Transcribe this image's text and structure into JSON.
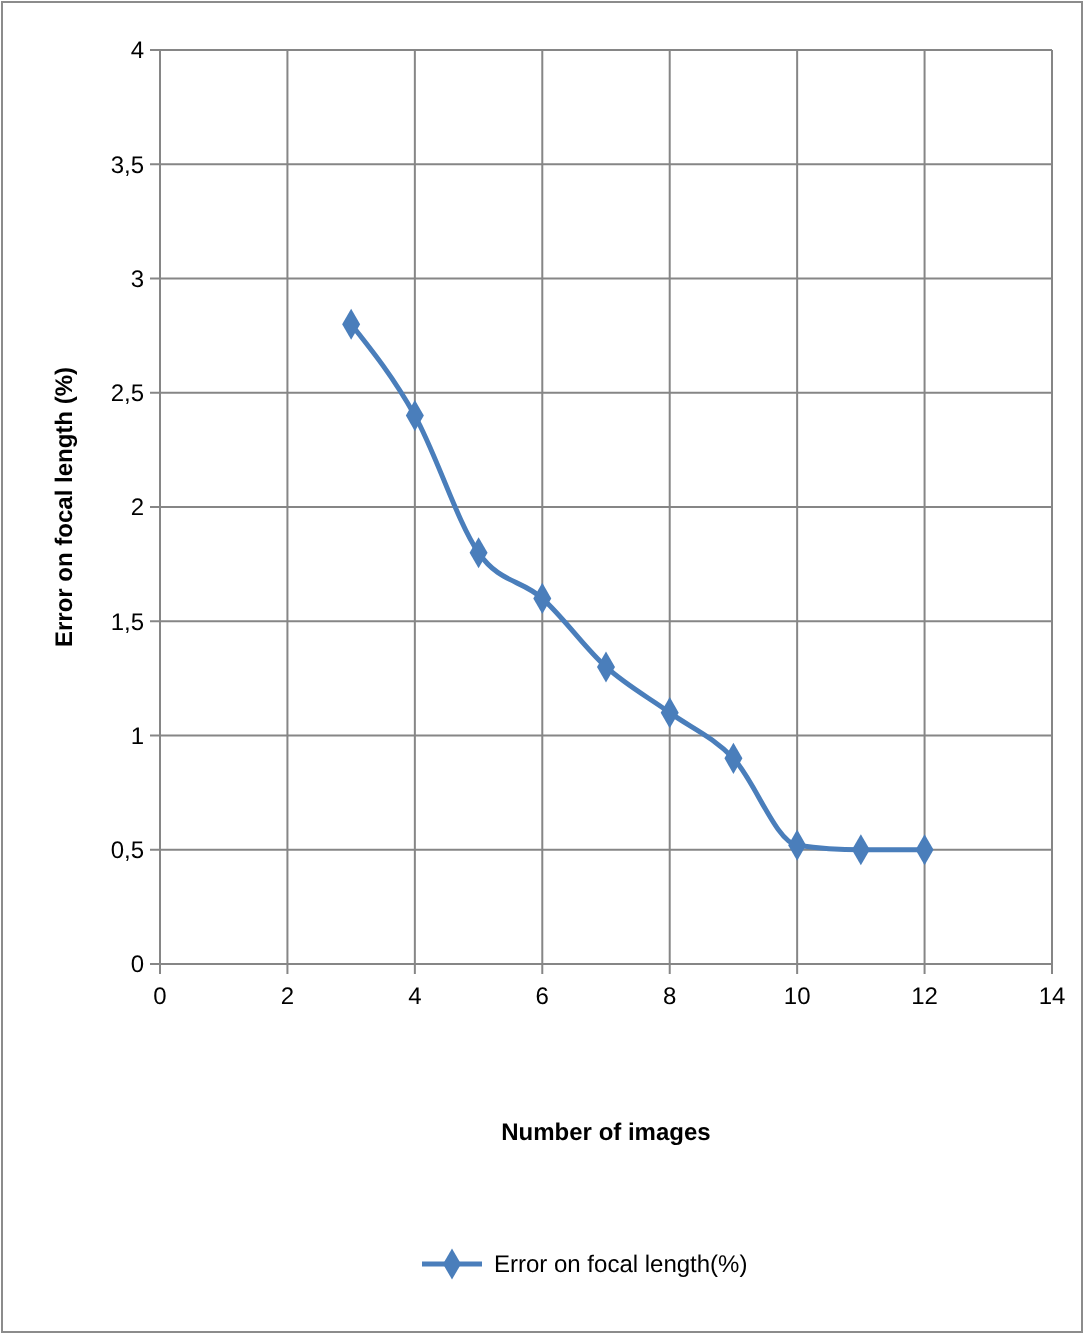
{
  "chart_data": {
    "type": "line",
    "xlabel": "Number of images",
    "ylabel": "Error on focal length (%)",
    "x": [
      3,
      4,
      5,
      6,
      7,
      8,
      9,
      10,
      11,
      12
    ],
    "series": [
      {
        "name": "Error on focal length(%)",
        "color": "#4a7ebb",
        "values": [
          2.8,
          2.4,
          1.8,
          1.6,
          1.3,
          1.1,
          0.9,
          0.52,
          0.5,
          0.5
        ]
      }
    ],
    "xlim": [
      0,
      14
    ],
    "xticks": [
      0,
      2,
      4,
      6,
      8,
      10,
      12,
      14
    ],
    "ylim": [
      0,
      4
    ],
    "yticks": [
      0,
      {
        "value": 0.5,
        "label": "0,5"
      },
      1,
      {
        "value": 1.5,
        "label": "1,5"
      },
      2,
      {
        "value": 2.5,
        "label": "2,5"
      },
      3,
      {
        "value": 3.5,
        "label": "3,5"
      },
      4
    ],
    "grid": true,
    "legend": "bottom",
    "marker": "diamond",
    "line_style": "solid"
  }
}
